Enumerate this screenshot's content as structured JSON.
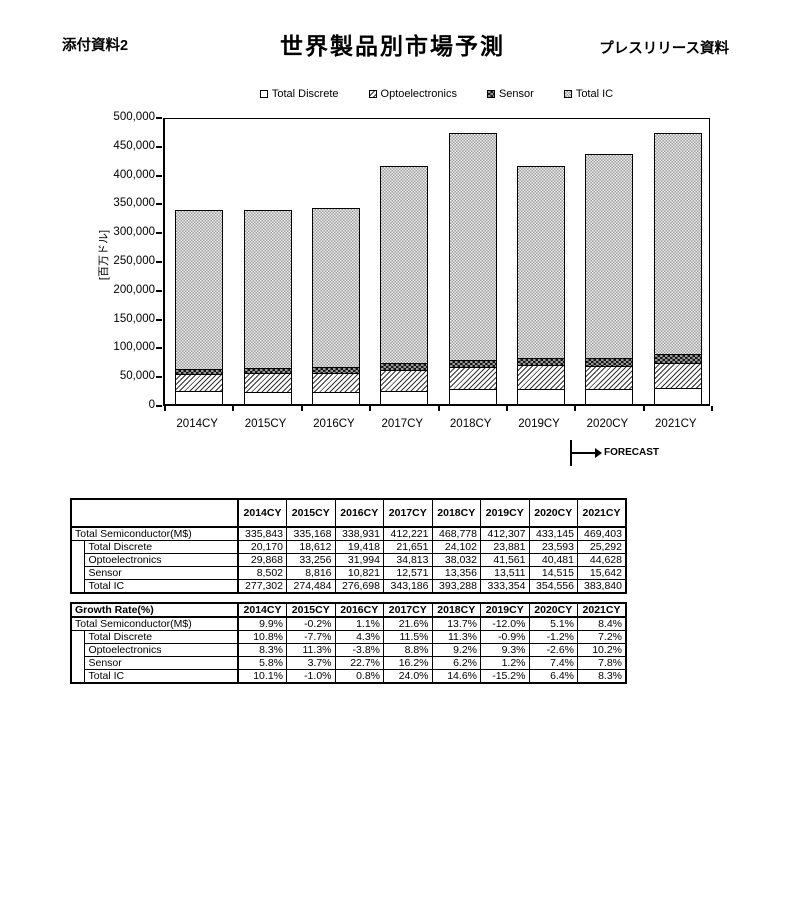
{
  "page": {
    "attachment_label": "添付資料2",
    "title": "世界製品別市場予測",
    "press_label": "プレスリリース資料"
  },
  "chart_data": {
    "type": "bar",
    "stacked": true,
    "title": "世界製品別市場予測",
    "ylabel": "[百万ドル]",
    "ylim": [
      0,
      500000
    ],
    "ytick_step": 50000,
    "yticks": [
      "0",
      "50,000",
      "100,000",
      "150,000",
      "200,000",
      "250,000",
      "300,000",
      "350,000",
      "400,000",
      "450,000",
      "500,000"
    ],
    "grid": false,
    "legend_position": "top",
    "categories": [
      "2014CY",
      "2015CY",
      "2016CY",
      "2017CY",
      "2018CY",
      "2019CY",
      "2020CY",
      "2021CY"
    ],
    "series": [
      {
        "name": "Total Discrete",
        "pattern": "plain",
        "values": [
          20170,
          18612,
          19418,
          21651,
          24102,
          23881,
          23593,
          25292
        ]
      },
      {
        "name": "Optoelectronics",
        "pattern": "diag",
        "values": [
          29868,
          33256,
          31994,
          34813,
          38032,
          41561,
          40481,
          44628
        ]
      },
      {
        "name": "Sensor",
        "pattern": "dark",
        "values": [
          8502,
          8816,
          10821,
          12571,
          13356,
          13511,
          14515,
          15642
        ]
      },
      {
        "name": "Total IC",
        "pattern": "fine",
        "values": [
          277302,
          274484,
          276698,
          343186,
          393288,
          333354,
          354556,
          383840
        ]
      }
    ],
    "totals": [
      335843,
      335168,
      338931,
      412221,
      468778,
      412307,
      433145,
      469403
    ],
    "forecast_label": "FORECAST",
    "forecast_from_category": "2020CY"
  },
  "value_table": {
    "header": [
      "",
      "2014CY",
      "2015CY",
      "2016CY",
      "2017CY",
      "2018CY",
      "2019CY",
      "2020CY",
      "2021CY"
    ],
    "rows": [
      {
        "label": "Total Semiconductor(M$)",
        "indent": false,
        "values": [
          "335,843",
          "335,168",
          "338,931",
          "412,221",
          "468,778",
          "412,307",
          "433,145",
          "469,403"
        ]
      },
      {
        "label": "Total Discrete",
        "indent": true,
        "values": [
          "20,170",
          "18,612",
          "19,418",
          "21,651",
          "24,102",
          "23,881",
          "23,593",
          "25,292"
        ]
      },
      {
        "label": "Optoelectronics",
        "indent": true,
        "values": [
          "29,868",
          "33,256",
          "31,994",
          "34,813",
          "38,032",
          "41,561",
          "40,481",
          "44,628"
        ]
      },
      {
        "label": "Sensor",
        "indent": true,
        "values": [
          "8,502",
          "8,816",
          "10,821",
          "12,571",
          "13,356",
          "13,511",
          "14,515",
          "15,642"
        ]
      },
      {
        "label": "Total IC",
        "indent": true,
        "values": [
          "277,302",
          "274,484",
          "276,698",
          "343,186",
          "393,288",
          "333,354",
          "354,556",
          "383,840"
        ]
      }
    ]
  },
  "growth_table": {
    "header": [
      "Growth Rate(%)",
      "2014CY",
      "2015CY",
      "2016CY",
      "2017CY",
      "2018CY",
      "2019CY",
      "2020CY",
      "2021CY"
    ],
    "rows": [
      {
        "label": "Total Semiconductor(M$)",
        "indent": false,
        "values": [
          "9.9%",
          "-0.2%",
          "1.1%",
          "21.6%",
          "13.7%",
          "-12.0%",
          "5.1%",
          "8.4%"
        ]
      },
      {
        "label": "Total Discrete",
        "indent": true,
        "values": [
          "10.8%",
          "-7.7%",
          "4.3%",
          "11.5%",
          "11.3%",
          "-0.9%",
          "-1.2%",
          "7.2%"
        ]
      },
      {
        "label": "Optoelectronics",
        "indent": true,
        "values": [
          "8.3%",
          "11.3%",
          "-3.8%",
          "8.8%",
          "9.2%",
          "9.3%",
          "-2.6%",
          "10.2%"
        ]
      },
      {
        "label": "Sensor",
        "indent": true,
        "values": [
          "5.8%",
          "3.7%",
          "22.7%",
          "16.2%",
          "6.2%",
          "1.2%",
          "7.4%",
          "7.8%"
        ]
      },
      {
        "label": "Total IC",
        "indent": true,
        "values": [
          "10.1%",
          "-1.0%",
          "0.8%",
          "24.0%",
          "14.6%",
          "-15.2%",
          "6.4%",
          "8.3%"
        ]
      }
    ]
  }
}
